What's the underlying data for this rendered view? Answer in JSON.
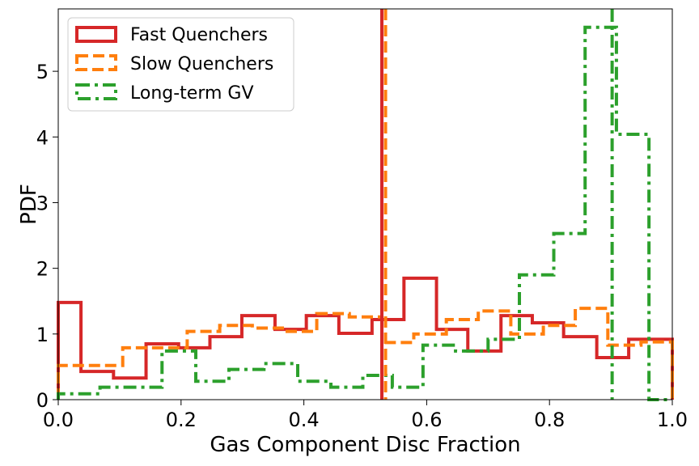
{
  "chart_data": {
    "type": "histogram-step",
    "title": "",
    "xlabel": "Gas Component Disc Fraction",
    "ylabel": "PDF",
    "xlim": [
      0.0,
      1.0
    ],
    "ylim": [
      0,
      5.95
    ],
    "xticks": [
      0.0,
      0.2,
      0.4,
      0.6,
      0.8,
      1.0
    ],
    "xtick_labels": [
      "0.0",
      "0.2",
      "0.4",
      "0.6",
      "0.8",
      "1.0"
    ],
    "yticks": [
      0,
      1,
      2,
      3,
      4,
      5
    ],
    "ytick_labels": [
      "0",
      "1",
      "2",
      "3",
      "4",
      "5"
    ],
    "legend_position": "top-left",
    "series": [
      {
        "name": "Fast Quenchers",
        "color": "#d62728",
        "linestyle": "solid",
        "edges": [
          0.0,
          0.037,
          0.09,
          0.143,
          0.196,
          0.247,
          0.299,
          0.353,
          0.404,
          0.457,
          0.511,
          0.563,
          0.616,
          0.667,
          0.721,
          0.772,
          0.823,
          0.877,
          0.929,
          1.0
        ],
        "values": [
          1.48,
          0.43,
          0.33,
          0.85,
          0.79,
          0.96,
          1.28,
          1.07,
          1.28,
          1.01,
          1.22,
          1.85,
          1.07,
          0.74,
          1.28,
          1.17,
          0.96,
          0.64,
          0.92
        ],
        "median": 0.527
      },
      {
        "name": "Slow Quenchers",
        "color": "#ff7f0e",
        "linestyle": "dashed",
        "edges": [
          0.0,
          0.07,
          0.105,
          0.158,
          0.21,
          0.263,
          0.316,
          0.369,
          0.421,
          0.474,
          0.527,
          0.579,
          0.632,
          0.684,
          0.737,
          0.79,
          0.842,
          0.895,
          0.949,
          1.0
        ],
        "values": [
          0.52,
          0.52,
          0.79,
          0.79,
          1.04,
          1.13,
          1.09,
          1.04,
          1.31,
          1.26,
          0.87,
          1.0,
          1.22,
          1.35,
          1.0,
          1.13,
          1.39,
          0.83,
          0.88
        ],
        "median": 0.533
      },
      {
        "name": "Long-term GV",
        "color": "#2ca02c",
        "linestyle": "dashdot",
        "edges": [
          0.0,
          0.068,
          0.169,
          0.224,
          0.278,
          0.335,
          0.39,
          0.444,
          0.496,
          0.544,
          0.594,
          0.647,
          0.7,
          0.751,
          0.807,
          0.858,
          0.909,
          0.962,
          1.0
        ],
        "values": [
          0.09,
          0.19,
          0.74,
          0.28,
          0.46,
          0.55,
          0.28,
          0.19,
          0.37,
          0.19,
          0.83,
          0.74,
          0.92,
          1.9,
          2.53,
          5.67,
          4.04,
          0.0
        ],
        "median": 0.902
      }
    ]
  }
}
